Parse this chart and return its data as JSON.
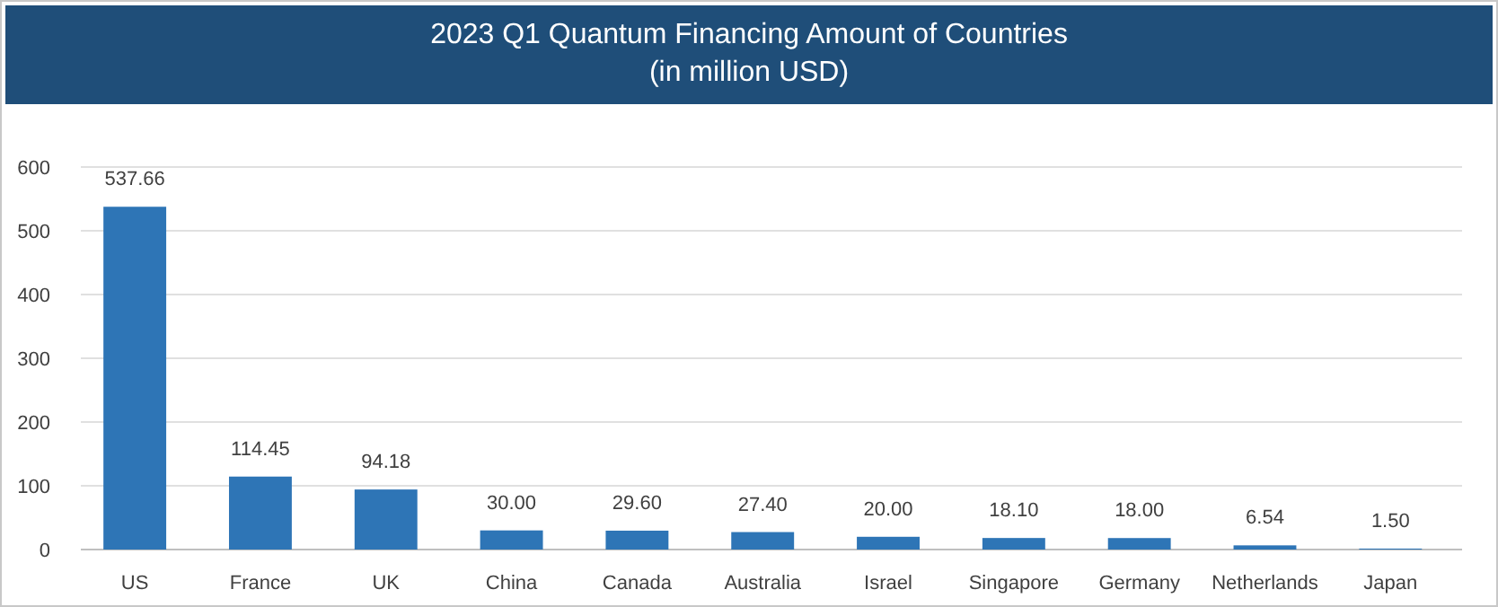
{
  "chart_data": {
    "type": "bar",
    "title": "2023 Q1 Quantum Financing Amount of Countries",
    "subtitle": "(in million USD)",
    "categories": [
      "US",
      "France",
      "UK",
      "China",
      "Canada",
      "Australia",
      "Israel",
      "Singapore",
      "Germany",
      "Netherlands",
      "Japan"
    ],
    "values": [
      537.66,
      114.45,
      94.18,
      30.0,
      29.6,
      27.4,
      20.0,
      18.1,
      18.0,
      6.54,
      1.5
    ],
    "value_labels": [
      "537.66",
      "114.45",
      "94.18",
      "30.00",
      "29.60",
      "27.40",
      "20.00",
      "18.10",
      "18.00",
      "6.54",
      "1.50"
    ],
    "color": "#2e75b6",
    "ylim": [
      0,
      600
    ],
    "yticks": [
      0,
      100,
      200,
      300,
      400,
      500,
      600
    ],
    "grid": "y"
  }
}
